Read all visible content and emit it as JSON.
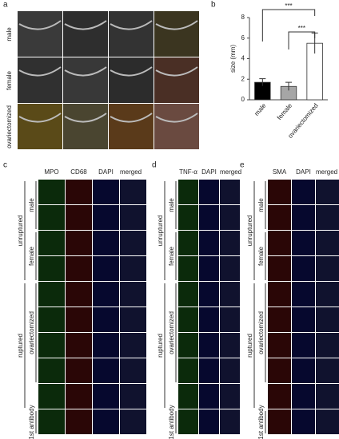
{
  "panel_a": {
    "label": "a",
    "rows": [
      "male",
      "female",
      "ovariectomized"
    ]
  },
  "chart_data": {
    "type": "bar",
    "label": "b",
    "y_label": "size (mm)",
    "categories": [
      "male",
      "female",
      "ovariectomized"
    ],
    "values": [
      1.7,
      1.3,
      5.5
    ],
    "errors": [
      0.35,
      0.4,
      1.0
    ],
    "colors": [
      "#000000",
      "#a6a6a6",
      "#ffffff"
    ],
    "ylim": [
      0,
      8
    ],
    "yticks": [
      0,
      2,
      4,
      6,
      8
    ],
    "annotations": [
      "***",
      "***"
    ]
  },
  "panels": [
    {
      "label": "c",
      "channels": [
        "MPO",
        "CD68",
        "DAPI",
        "merged"
      ],
      "row_labels": [
        "male",
        "female",
        "unruptured",
        "ovariectomized",
        "ruptured",
        "1st antibody"
      ]
    },
    {
      "label": "d",
      "channels": [
        "TNF-α",
        "DAPI",
        "merged"
      ],
      "row_labels": [
        "male",
        "female",
        "unruptured",
        "ovariectomized",
        "ruptured",
        "1st antibody"
      ]
    },
    {
      "label": "e",
      "channels": [
        "SMA",
        "DAPI",
        "merged"
      ],
      "row_labels": [
        "male",
        "female",
        "unruptured",
        "ovariectomized",
        "ruptured",
        "1st antibody"
      ]
    }
  ]
}
